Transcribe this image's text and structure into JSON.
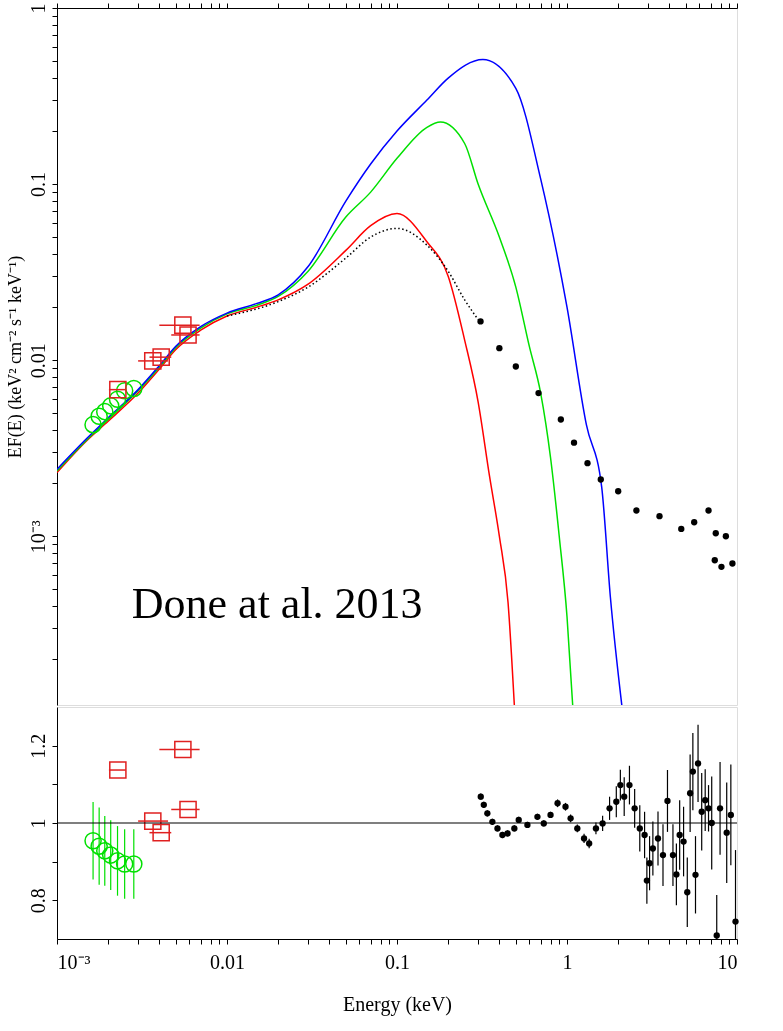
{
  "chart_data": [
    {
      "type": "line",
      "ylabel": "EF(E) (keV² cm⁻² s⁻¹ keV⁻¹)",
      "log": "xy",
      "grid": false,
      "tick_labels": "y",
      "xlim": [
        0.001,
        10
      ],
      "ylim": [
        0.00011,
        1
      ],
      "xticks": [
        {
          "value": 0.001,
          "label": null
        },
        {
          "value": 0.002,
          "label": null
        },
        {
          "value": 0.003,
          "label": null
        },
        {
          "value": 0.004,
          "label": null
        },
        {
          "value": 0.005,
          "label": null
        },
        {
          "value": 0.006,
          "label": null
        },
        {
          "value": 0.007,
          "label": null
        },
        {
          "value": 0.008,
          "label": null
        },
        {
          "value": 0.009,
          "label": null
        },
        {
          "value": 0.01,
          "label": null
        },
        {
          "value": 0.02,
          "label": null
        },
        {
          "value": 0.03,
          "label": null
        },
        {
          "value": 0.04,
          "label": null
        },
        {
          "value": 0.05,
          "label": null
        },
        {
          "value": 0.06,
          "label": null
        },
        {
          "value": 0.07,
          "label": null
        },
        {
          "value": 0.08,
          "label": null
        },
        {
          "value": 0.09,
          "label": null
        },
        {
          "value": 0.1,
          "label": null
        },
        {
          "value": 0.2,
          "label": null
        },
        {
          "value": 0.3,
          "label": null
        },
        {
          "value": 0.4,
          "label": null
        },
        {
          "value": 0.5,
          "label": null
        },
        {
          "value": 0.6,
          "label": null
        },
        {
          "value": 0.7,
          "label": null
        },
        {
          "value": 0.8,
          "label": null
        },
        {
          "value": 0.9,
          "label": null
        },
        {
          "value": 1,
          "label": null
        },
        {
          "value": 2,
          "label": null
        },
        {
          "value": 3,
          "label": null
        },
        {
          "value": 4,
          "label": null
        },
        {
          "value": 5,
          "label": null
        },
        {
          "value": 6,
          "label": null
        },
        {
          "value": 7,
          "label": null
        },
        {
          "value": 8,
          "label": null
        },
        {
          "value": 9,
          "label": null
        },
        {
          "value": 10,
          "label": null
        }
      ],
      "yticks": [
        {
          "value": 0.0002,
          "label": null
        },
        {
          "value": 0.0003,
          "label": null
        },
        {
          "value": 0.0004,
          "label": null
        },
        {
          "value": 0.0005,
          "label": null
        },
        {
          "value": 0.0006,
          "label": null
        },
        {
          "value": 0.0007,
          "label": null
        },
        {
          "value": 0.0008,
          "label": null
        },
        {
          "value": 0.0009,
          "label": null
        },
        {
          "value": 0.001,
          "label": "10⁻³"
        },
        {
          "value": 0.002,
          "label": null
        },
        {
          "value": 0.003,
          "label": null
        },
        {
          "value": 0.004,
          "label": null
        },
        {
          "value": 0.005,
          "label": null
        },
        {
          "value": 0.006,
          "label": null
        },
        {
          "value": 0.007,
          "label": null
        },
        {
          "value": 0.008,
          "label": null
        },
        {
          "value": 0.009,
          "label": null
        },
        0.01,
        {
          "value": 0.02,
          "label": null
        },
        {
          "value": 0.03,
          "label": null
        },
        {
          "value": 0.04,
          "label": null
        },
        {
          "value": 0.05,
          "label": null
        },
        {
          "value": 0.06,
          "label": null
        },
        {
          "value": 0.07,
          "label": null
        },
        {
          "value": 0.08,
          "label": null
        },
        {
          "value": 0.09,
          "label": null
        },
        0.1,
        {
          "value": 0.2,
          "label": null
        },
        {
          "value": 0.3,
          "label": null
        },
        {
          "value": 0.4,
          "label": null
        },
        {
          "value": 0.5,
          "label": null
        },
        {
          "value": 0.6,
          "label": null
        },
        {
          "value": 0.7,
          "label": null
        },
        {
          "value": 0.8,
          "label": null
        },
        {
          "value": 0.9,
          "label": null
        },
        1
      ],
      "annotations": [
        "Done at al. 2013"
      ],
      "series": [
        {
          "type": "line",
          "color": "#0000ff",
          "x": [
            0.001,
            0.0015,
            0.002,
            0.003,
            0.004,
            0.005,
            0.007,
            0.01,
            0.015,
            0.02,
            0.03,
            0.05,
            0.07,
            0.1,
            0.15,
            0.2,
            0.32,
            0.5,
            0.7,
            1,
            1.3,
            1.6,
            1.8,
            2.1
          ],
          "values": [
            0.0024,
            0.0036,
            0.0047,
            0.0068,
            0.0093,
            0.012,
            0.0155,
            0.0185,
            0.021,
            0.0235,
            0.034,
            0.08,
            0.13,
            0.2,
            0.3,
            0.4,
            0.51,
            0.35,
            0.107,
            0.02,
            0.0043,
            0.0019,
            0.00045,
            0.00011
          ]
        },
        {
          "type": "line",
          "color": "#00e000",
          "x": [
            0.001,
            0.0015,
            0.002,
            0.003,
            0.004,
            0.005,
            0.007,
            0.01,
            0.015,
            0.02,
            0.03,
            0.05,
            0.07,
            0.1,
            0.15,
            0.18,
            0.25,
            0.3,
            0.4,
            0.5,
            0.6,
            0.7,
            0.8,
            0.9,
            1,
            1.08
          ],
          "values": [
            0.00235,
            0.00353,
            0.0046,
            0.0067,
            0.0091,
            0.0118,
            0.0152,
            0.0183,
            0.0205,
            0.023,
            0.032,
            0.065,
            0.09,
            0.14,
            0.21,
            0.225,
            0.17,
            0.1,
            0.05,
            0.026,
            0.012,
            0.0065,
            0.0028,
            0.001,
            0.00035,
            0.00011
          ]
        },
        {
          "type": "line",
          "color": "#ff0000",
          "x": [
            0.001,
            0.0015,
            0.002,
            0.003,
            0.004,
            0.005,
            0.007,
            0.01,
            0.015,
            0.02,
            0.03,
            0.05,
            0.07,
            0.1,
            0.15,
            0.2,
            0.25,
            0.3,
            0.35,
            0.4,
            0.45,
            0.49
          ],
          "values": [
            0.0023,
            0.0035,
            0.0045,
            0.0065,
            0.0089,
            0.0115,
            0.0148,
            0.0178,
            0.02,
            0.022,
            0.027,
            0.042,
            0.058,
            0.068,
            0.047,
            0.03,
            0.013,
            0.0058,
            0.0022,
            0.001,
            0.00042,
            0.00011
          ]
        },
        {
          "type": "line",
          "color": "#000000",
          "line_style": "dotted",
          "x": [
            0.01,
            0.02,
            0.03,
            0.05,
            0.07,
            0.1,
            0.15,
            0.2,
            0.25,
            0.3
          ],
          "values": [
            0.0178,
            0.0215,
            0.026,
            0.038,
            0.05,
            0.056,
            0.045,
            0.032,
            0.022,
            0.017
          ]
        },
        {
          "type": "scatter",
          "marker": "circle",
          "color": "#00e000",
          "x": [
            0.00163,
            0.00177,
            0.00191,
            0.00207,
            0.00227,
            0.0025,
            0.00283
          ],
          "values": [
            0.0043,
            0.0048,
            0.0051,
            0.0055,
            0.006,
            0.0067,
            0.0069
          ]
        },
        {
          "type": "scatter",
          "marker": "square",
          "color": "#e02020",
          "x": [
            0.00228,
            0.00366,
            0.0041,
            0.0055,
            0.0059
          ],
          "values": [
            0.0068,
            0.0099,
            0.0104,
            0.0158,
            0.0139
          ],
          "xerrors": [
            [
              0.00202,
              0.00254
            ],
            [
              0.003,
              0.0045
            ],
            [
              0.0035,
              0.0047
            ],
            [
              0.004,
              0.0069
            ],
            [
              0.0047,
              0.0069
            ]
          ]
        },
        {
          "type": "scatter",
          "marker": "circle",
          "color": "#000000",
          "x": [
            0.31,
            0.4,
            0.5,
            0.68,
            0.92,
            1.1,
            1.32,
            1.58,
            2.0,
            2.56,
            3.5,
            4.7,
            5.6,
            6.8,
            7.4,
            7.5,
            8.1,
            8.6,
            9.4
          ],
          "values": [
            0.0166,
            0.0117,
            0.0092,
            0.0065,
            0.0046,
            0.0034,
            0.0026,
            0.0021,
            0.0018,
            0.0014,
            0.0013,
            0.0011,
            0.0012,
            0.0014,
            0.00073,
            0.00104,
            0.00067,
            0.001,
            0.0007
          ]
        }
      ]
    },
    {
      "type": "scatter",
      "xlabel": "Energy (keV)",
      "log": "x",
      "grid": false,
      "xlim": [
        0.001,
        10
      ],
      "ylim": [
        0.7,
        1.3
      ],
      "xticks": [
        {
          "value": 0.001,
          "label": "10⁻³"
        },
        {
          "value": 0.002,
          "label": null
        },
        {
          "value": 0.003,
          "label": null
        },
        {
          "value": 0.004,
          "label": null
        },
        {
          "value": 0.005,
          "label": null
        },
        {
          "value": 0.006,
          "label": null
        },
        {
          "value": 0.007,
          "label": null
        },
        {
          "value": 0.008,
          "label": null
        },
        {
          "value": 0.009,
          "label": null
        },
        0.01,
        {
          "value": 0.02,
          "label": null
        },
        {
          "value": 0.03,
          "label": null
        },
        {
          "value": 0.04,
          "label": null
        },
        {
          "value": 0.05,
          "label": null
        },
        {
          "value": 0.06,
          "label": null
        },
        {
          "value": 0.07,
          "label": null
        },
        {
          "value": 0.08,
          "label": null
        },
        {
          "value": 0.09,
          "label": null
        },
        0.1,
        {
          "value": 0.2,
          "label": null
        },
        {
          "value": 0.3,
          "label": null
        },
        {
          "value": 0.4,
          "label": null
        },
        {
          "value": 0.5,
          "label": null
        },
        {
          "value": 0.6,
          "label": null
        },
        {
          "value": 0.7,
          "label": null
        },
        {
          "value": 0.8,
          "label": null
        },
        {
          "value": 0.9,
          "label": null
        },
        1,
        {
          "value": 2,
          "label": null
        },
        {
          "value": 3,
          "label": null
        },
        {
          "value": 4,
          "label": null
        },
        {
          "value": 5,
          "label": null
        },
        {
          "value": 6,
          "label": null
        },
        {
          "value": 7,
          "label": null
        },
        {
          "value": 8,
          "label": null
        },
        {
          "value": 9,
          "label": null
        },
        10
      ],
      "yticks": [
        0.8,
        {
          "value": 0.9,
          "label": null
        },
        1,
        {
          "value": 1.1,
          "label": null
        },
        1.2
      ],
      "ref_lines": [
        {
          "axis": "y",
          "value": 1,
          "color": "#000000"
        }
      ],
      "series": [
        {
          "marker": "circle",
          "color": "#00e000",
          "x": [
            0.00163,
            0.00177,
            0.00191,
            0.00207,
            0.00227,
            0.0025,
            0.00283
          ],
          "values": [
            0.954,
            0.94,
            0.928,
            0.917,
            0.902,
            0.894,
            0.894
          ],
          "errors": [
            0.1,
            0.1,
            0.09,
            0.09,
            0.09,
            0.09,
            0.09
          ]
        },
        {
          "marker": "square",
          "color": "#e02020",
          "x": [
            0.00228,
            0.00366,
            0.0041,
            0.0055,
            0.0059
          ],
          "values": [
            1.137,
            1.005,
            0.975,
            1.19,
            1.035
          ],
          "xerrors": [
            [
              0.00202,
              0.00254
            ],
            [
              0.003,
              0.0045
            ],
            [
              0.0035,
              0.0047
            ],
            [
              0.004,
              0.0069
            ],
            [
              0.0047,
              0.0069
            ]
          ]
        },
        {
          "marker": "circle",
          "color": "#000000",
          "x": [
            0.311,
            0.324,
            0.34,
            0.364,
            0.39,
            0.417,
            0.447,
            0.49,
            0.52,
            0.585,
            0.67,
            0.73,
            0.8,
            0.88,
            0.98,
            1.05,
            1.15,
            1.26,
            1.35,
            1.48,
            1.62,
            1.78,
            1.95,
            2.06,
            2.17,
            2.33,
            2.5,
            2.68,
            2.86,
            2.95,
            3.06,
            3.2,
            3.43,
            3.67,
            3.9,
            4.2,
            4.4,
            4.6,
            4.85,
            5.1,
            5.3,
            5.5,
            5.7,
            5.9,
            6.2,
            6.5,
            6.8,
            7.1,
            7.6,
            7.95,
            8.7,
            9.2,
            9.8
          ],
          "values": [
            1.068,
            1.047,
            1.025,
            1.003,
            0.986,
            0.969,
            0.973,
            0.986,
            1.008,
            0.995,
            1.016,
            0.999,
            1.021,
            1.051,
            1.042,
            1.012,
            0.986,
            0.96,
            0.947,
            0.986,
            0.999,
            1.038,
            1.055,
            1.098,
            1.068,
            1.098,
            1.038,
            0.986,
            0.969,
            0.851,
            0.896,
            0.934,
            0.96,
            0.917,
            1.057,
            0.917,
            0.867,
            0.969,
            0.952,
            0.821,
            1.077,
            1.133,
            0.866,
            1.154,
            1.029,
            1.059,
            1.038,
            1.0,
            0.709,
            1.038,
            0.975,
            1.021,
            0.745
          ],
          "errors": [
            0.008,
            0.008,
            0.008,
            0.008,
            0.008,
            0.008,
            0.008,
            0.008,
            0.008,
            0.008,
            0.008,
            0.008,
            0.008,
            0.01,
            0.01,
            0.01,
            0.01,
            0.012,
            0.012,
            0.015,
            0.02,
            0.03,
            0.04,
            0.04,
            0.05,
            0.05,
            0.05,
            0.06,
            0.06,
            0.06,
            0.07,
            0.07,
            0.07,
            0.08,
            0.08,
            0.08,
            0.08,
            0.09,
            0.09,
            0.09,
            0.1,
            0.1,
            0.1,
            0.1,
            0.1,
            0.08,
            0.06,
            0.12,
            [
              0.7,
              0.814
            ],
            0.12,
            0.13,
            0.13,
            [
              0.7,
              0.93
            ]
          ]
        }
      ]
    }
  ]
}
